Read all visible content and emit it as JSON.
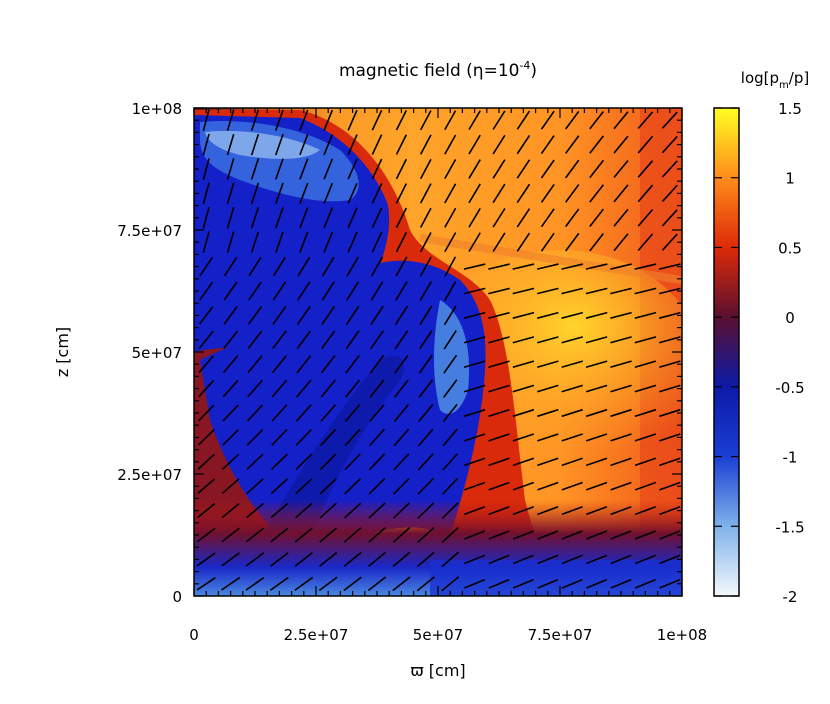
{
  "chart_data": {
    "type": "heatmap",
    "title": "magnetic field (η=10",
    "title_exponent": "-4",
    "title_suffix": ")",
    "xlabel": "ϖ [cm]",
    "ylabel": "z [cm]",
    "xlim": [
      0,
      100000000
    ],
    "ylim": [
      0,
      100000000
    ],
    "x_ticks": [
      {
        "value": 0,
        "label": "0"
      },
      {
        "value": 25000000,
        "label": "2.5e+07"
      },
      {
        "value": 50000000,
        "label": "5e+07"
      },
      {
        "value": 75000000,
        "label": "7.5e+07"
      },
      {
        "value": 100000000,
        "label": "1e+08"
      }
    ],
    "y_ticks": [
      {
        "value": 0,
        "label": "0"
      },
      {
        "value": 25000000,
        "label": "2.5e+07"
      },
      {
        "value": 50000000,
        "label": "5e+07"
      },
      {
        "value": 75000000,
        "label": "7.5e+07"
      },
      {
        "value": 100000000,
        "label": "1e+08"
      }
    ],
    "colorbar": {
      "label": "log[p",
      "label_sub_m": "m",
      "label_end": "/p]",
      "range": [
        -2,
        1.5
      ],
      "ticks": [
        {
          "value": 1.5,
          "label": "1.5"
        },
        {
          "value": 1,
          "label": "1"
        },
        {
          "value": 0.5,
          "label": "0.5"
        },
        {
          "value": 0,
          "label": "0"
        },
        {
          "value": -0.5,
          "label": "-0.5"
        },
        {
          "value": -1,
          "label": "-1"
        },
        {
          "value": -1.5,
          "label": "-1.5"
        },
        {
          "value": -2,
          "label": "-2"
        }
      ],
      "stops": [
        {
          "value": -2,
          "color": "#f4f8fc"
        },
        {
          "value": -1.5,
          "color": "#7fb2ea"
        },
        {
          "value": -1,
          "color": "#1a3fd4"
        },
        {
          "value": -0.5,
          "color": "#0d1aa8"
        },
        {
          "value": 0,
          "color": "#5a1030"
        },
        {
          "value": 0.5,
          "color": "#dd2a08"
        },
        {
          "value": 1,
          "color": "#ff8c1a"
        },
        {
          "value": 1.5,
          "color": "#ffff22"
        }
      ]
    },
    "field_arrows": true,
    "grid": false
  }
}
